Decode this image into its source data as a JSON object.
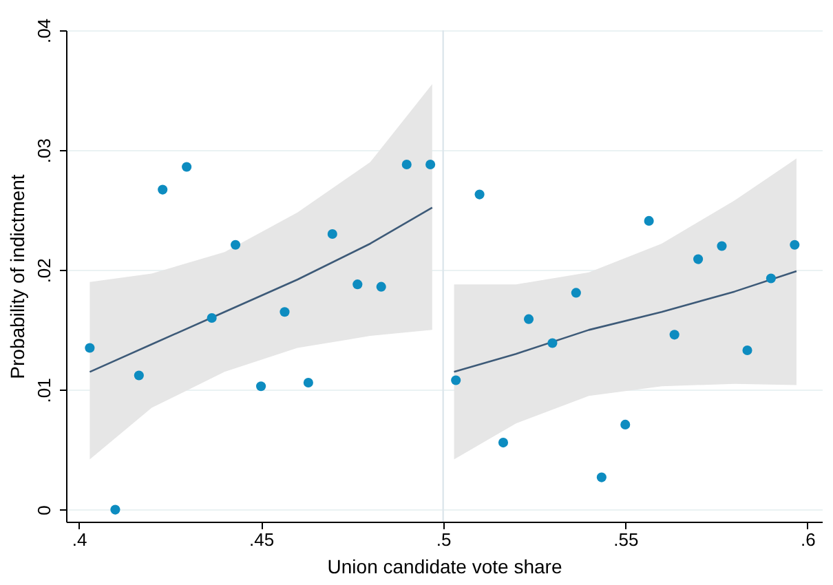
{
  "chart_data": {
    "type": "scatter",
    "xlabel": "Union candidate vote share",
    "ylabel": "Probability of indictment",
    "xlim": [
      0.3965,
      0.604
    ],
    "ylim": [
      -0.001,
      0.04
    ],
    "xticks": [
      {
        "value": 0.4,
        "label": ".4"
      },
      {
        "value": 0.45,
        "label": ".45"
      },
      {
        "value": 0.5,
        "label": ".5"
      },
      {
        "value": 0.55,
        "label": ".55"
      },
      {
        "value": 0.6,
        "label": ".6"
      }
    ],
    "yticks": [
      0,
      {
        "value": 0.01,
        "label": ".01"
      },
      {
        "value": 0.02,
        "label": ".02"
      },
      {
        "value": 0.03,
        "label": ".03"
      },
      {
        "value": 0.04,
        "label": ".04"
      }
    ],
    "grid": "y",
    "ref_lines": [
      {
        "axis": "x",
        "value": 0.5,
        "color": "#dde6ec"
      }
    ],
    "series": [
      {
        "color": "#0d8cc0",
        "marker": "circle",
        "x": [
          0.403,
          0.41,
          0.4165,
          0.423,
          0.4296,
          0.4365,
          0.443,
          0.45,
          0.4565,
          0.463,
          0.4696,
          0.4765,
          0.483,
          0.49,
          0.4965,
          0.5035,
          0.51,
          0.5165,
          0.5235,
          0.53,
          0.5365,
          0.5435,
          0.55,
          0.5565,
          0.5635,
          0.57,
          0.5765,
          0.5835,
          0.59,
          0.5965
        ],
        "values": [
          0.0135,
          0.0,
          0.0112,
          0.0267,
          0.0286,
          0.016,
          0.0221,
          0.0103,
          0.0165,
          0.0106,
          0.023,
          0.0188,
          0.0186,
          0.0288,
          0.0288,
          0.0108,
          0.0263,
          0.0056,
          0.0159,
          0.0139,
          0.0181,
          0.0027,
          0.0071,
          0.0241,
          0.0146,
          0.0209,
          0.022,
          0.0133,
          0.0193,
          0.0221
        ]
      },
      {
        "type": "line",
        "color": "#3d5a78",
        "x": [
          0.403,
          0.42,
          0.44,
          0.46,
          0.48,
          0.497
        ],
        "values": [
          0.0115,
          0.0138,
          0.0165,
          0.0192,
          0.0222,
          0.0252
        ],
        "lower": [
          0.0042,
          0.0085,
          0.0115,
          0.0135,
          0.0145,
          0.015
        ],
        "upper": [
          0.019,
          0.0197,
          0.0215,
          0.0248,
          0.029,
          0.0355
        ]
      },
      {
        "type": "line",
        "color": "#3d5a78",
        "x": [
          0.503,
          0.52,
          0.54,
          0.56,
          0.58,
          0.597
        ],
        "values": [
          0.0115,
          0.013,
          0.015,
          0.0165,
          0.0182,
          0.0199
        ],
        "lower": [
          0.0042,
          0.0072,
          0.0095,
          0.0103,
          0.0105,
          0.0104
        ],
        "upper": [
          0.0188,
          0.0188,
          0.0198,
          0.0222,
          0.0258,
          0.0293
        ]
      }
    ]
  }
}
